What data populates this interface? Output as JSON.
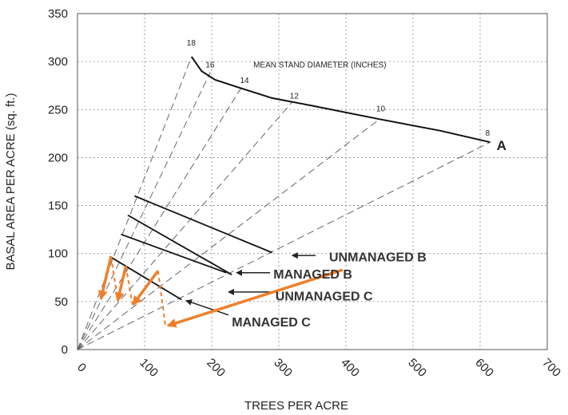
{
  "chart_data": {
    "type": "line",
    "title": "",
    "xlabel": "TREES PER ACRE",
    "ylabel": "BASAL AREA PER ACRE (sq. ft.)",
    "xlim": [
      0,
      700
    ],
    "ylim": [
      0,
      350
    ],
    "x_ticks": [
      "0",
      "100",
      "200",
      "300",
      "400",
      "500",
      "600",
      "700"
    ],
    "y_ticks": [
      "0",
      "50",
      "100",
      "150",
      "200",
      "250",
      "300",
      "350"
    ],
    "grid": true,
    "max_density_line": {
      "label": "A",
      "points": [
        [
          170,
          305
        ],
        [
          185,
          290
        ],
        [
          205,
          281
        ],
        [
          240,
          273
        ],
        [
          290,
          262
        ],
        [
          350,
          254
        ],
        [
          450,
          240
        ],
        [
          540,
          228
        ],
        [
          615,
          216
        ]
      ]
    },
    "diameter_curve_title": "MEAN STAND DIAMETER (INCHES)",
    "diameter_lines": [
      {
        "label": "18",
        "apex": [
          170,
          305
        ]
      },
      {
        "label": "16",
        "apex": [
          198,
          289
        ]
      },
      {
        "label": "14",
        "apex": [
          247,
          276
        ]
      },
      {
        "label": "12",
        "apex": [
          320,
          258
        ]
      },
      {
        "label": "10",
        "apex": [
          450,
          240
        ]
      },
      {
        "label": "8",
        "apex": [
          615,
          216
        ]
      }
    ],
    "management_lines": [
      {
        "label": "UNMANAGED B",
        "points": [
          [
            85,
            160
          ],
          [
            290,
            101
          ]
        ],
        "pointer": [
          [
            320,
            98
          ],
          [
            355,
            98
          ]
        ]
      },
      {
        "label": "MANAGED B",
        "points": [
          [
            75,
            140
          ],
          [
            230,
            78
          ]
        ],
        "pointer": [
          [
            237,
            80
          ],
          [
            287,
            80
          ]
        ]
      },
      {
        "label": "UNMANAGED C",
        "points": [
          [
            65,
            120
          ],
          [
            222,
            80
          ]
        ],
        "pointer": [
          [
            225,
            60
          ],
          [
            288,
            60
          ]
        ]
      },
      {
        "label": "MANAGED C",
        "points": [
          [
            48,
            97
          ],
          [
            155,
            52
          ]
        ],
        "pointer": [
          [
            162,
            51
          ],
          [
            225,
            36
          ]
        ]
      }
    ],
    "thinning_path": {
      "color": "#f07f2b",
      "solid_arrows": [
        [
          [
            50,
            97
          ],
          [
            35,
            53
          ]
        ],
        [
          [
            72,
            87
          ],
          [
            60,
            51
          ]
        ],
        [
          [
            120,
            82
          ],
          [
            83,
            47
          ]
        ],
        [
          [
            395,
            83
          ],
          [
            135,
            25
          ]
        ]
      ],
      "dashed_drops": [
        [
          [
            50,
            97
          ],
          [
            60,
            51
          ]
        ],
        [
          [
            72,
            87
          ],
          [
            82,
            47
          ]
        ],
        [
          [
            120,
            82
          ],
          [
            131,
            25
          ]
        ]
      ]
    }
  }
}
